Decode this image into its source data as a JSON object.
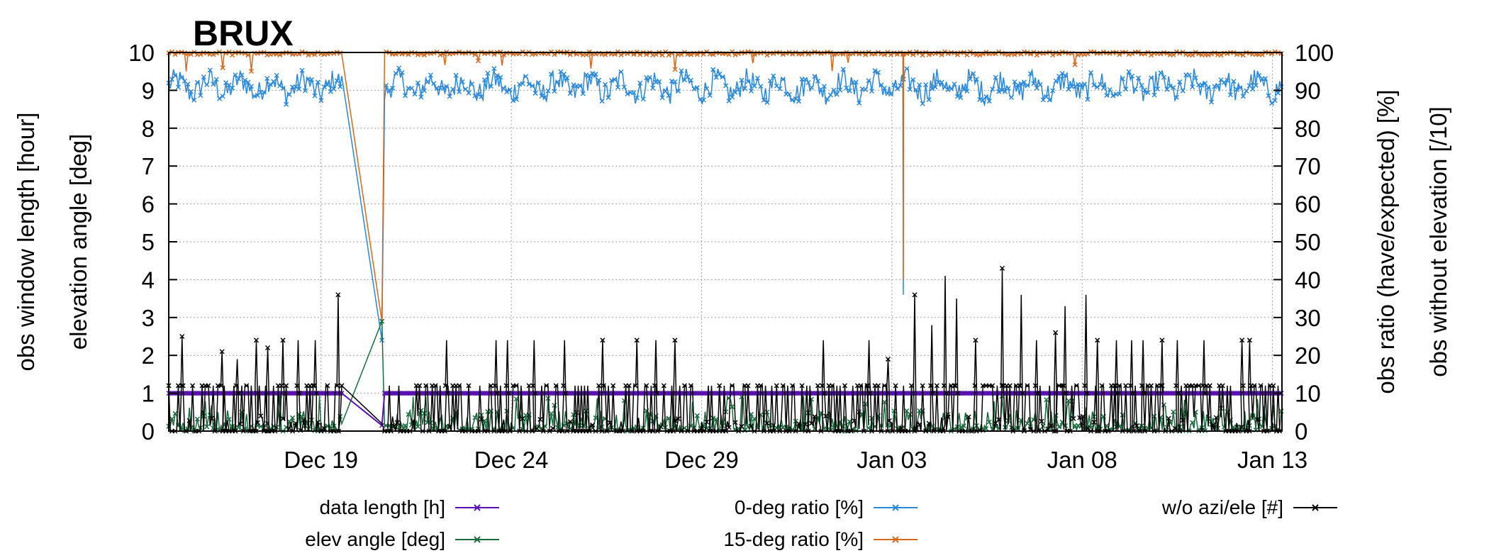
{
  "chart_data": {
    "type": "line",
    "title": "BRUX",
    "y1label_outer": "obs window length [hour]",
    "y1label_inner": "elevation angle [deg]",
    "y2label_inner": "obs ratio (have/expected) [%]",
    "y2label_outer": "obs without elevation [/10]",
    "x_range_days": [
      0,
      29.25
    ],
    "y1lim": [
      0,
      10
    ],
    "y2lim": [
      0,
      100
    ],
    "y1_ticks": [
      "0",
      "1",
      "2",
      "3",
      "4",
      "5",
      "6",
      "7",
      "8",
      "9",
      "10"
    ],
    "y2_ticks": [
      "0",
      "10",
      "20",
      "30",
      "40",
      "50",
      "60",
      "70",
      "80",
      "90",
      "100"
    ],
    "x_ticks": [
      {
        "label": "Dec 19",
        "day": 4
      },
      {
        "label": "Dec 24",
        "day": 9
      },
      {
        "label": "Dec 29",
        "day": 14
      },
      {
        "label": "Jan 03",
        "day": 19
      },
      {
        "label": "Jan 08",
        "day": 24
      },
      {
        "label": "Jan 13",
        "day": 29
      }
    ],
    "grid": true,
    "legend_position": "bottom",
    "gaps": [
      {
        "from_day": 4.55,
        "to_day": 5.65,
        "at_day": 5.6,
        "data_length": 0.15,
        "elev": 2.9,
        "ratio0": 24,
        "ratio15": 29,
        "woazi": 0.2
      }
    ],
    "dips": [
      {
        "day": 19.3,
        "ratio0": 36,
        "ratio15": 40
      }
    ],
    "series": [
      {
        "name": "data length  [h]",
        "key": "data_length",
        "axis": "y1",
        "color": "#5a0fb0",
        "pattern": {
          "base": 1.0,
          "amp": 0.0
        }
      },
      {
        "name": "elev angle [deg]",
        "key": "elev",
        "axis": "y1",
        "color": "#1a6b3c",
        "pattern": {
          "base": 0.15,
          "amp": 0.5
        }
      },
      {
        "name": "0-deg ratio [%]",
        "key": "ratio0",
        "axis": "y2",
        "color": "#2b88d8",
        "pattern": {
          "base": 91,
          "amp": 4
        }
      },
      {
        "name": "15-deg ratio [%]",
        "key": "ratio15",
        "axis": "y2",
        "color": "#d2691e",
        "pattern": {
          "base": 99.5,
          "amp": 0.8
        }
      },
      {
        "name": "w/o azi/ele [#]",
        "key": "woazi",
        "axis": "y1",
        "color": "#000000",
        "pattern": {
          "base": 0.5,
          "amp": 2.4
        }
      }
    ],
    "woazi_peaks": [
      {
        "day": 0.35,
        "v": 2.5
      },
      {
        "day": 1.4,
        "v": 2.1
      },
      {
        "day": 1.8,
        "v": 1.9
      },
      {
        "day": 2.3,
        "v": 2.4
      },
      {
        "day": 2.6,
        "v": 2.2
      },
      {
        "day": 3.0,
        "v": 2.4
      },
      {
        "day": 3.4,
        "v": 2.4
      },
      {
        "day": 3.85,
        "v": 2.4
      },
      {
        "day": 4.45,
        "v": 3.6
      },
      {
        "day": 7.3,
        "v": 2.4
      },
      {
        "day": 8.6,
        "v": 2.4
      },
      {
        "day": 8.9,
        "v": 2.4
      },
      {
        "day": 9.6,
        "v": 2.4
      },
      {
        "day": 10.4,
        "v": 2.4
      },
      {
        "day": 11.4,
        "v": 2.4
      },
      {
        "day": 12.3,
        "v": 2.4
      },
      {
        "day": 12.8,
        "v": 2.4
      },
      {
        "day": 13.3,
        "v": 2.4
      },
      {
        "day": 17.2,
        "v": 2.4
      },
      {
        "day": 18.4,
        "v": 2.4
      },
      {
        "day": 18.9,
        "v": 1.9
      },
      {
        "day": 19.6,
        "v": 3.6
      },
      {
        "day": 20.05,
        "v": 2.8
      },
      {
        "day": 20.4,
        "v": 4.1
      },
      {
        "day": 20.7,
        "v": 3.5
      },
      {
        "day": 21.2,
        "v": 2.4
      },
      {
        "day": 21.9,
        "v": 4.3
      },
      {
        "day": 22.4,
        "v": 3.6
      },
      {
        "day": 22.8,
        "v": 2.4
      },
      {
        "day": 23.3,
        "v": 2.6
      },
      {
        "day": 23.55,
        "v": 3.3
      },
      {
        "day": 24.1,
        "v": 3.6
      },
      {
        "day": 24.4,
        "v": 2.4
      },
      {
        "day": 24.9,
        "v": 2.4
      },
      {
        "day": 25.3,
        "v": 2.4
      },
      {
        "day": 25.6,
        "v": 2.4
      },
      {
        "day": 26.1,
        "v": 2.4
      },
      {
        "day": 26.5,
        "v": 2.4
      },
      {
        "day": 27.2,
        "v": 2.4
      },
      {
        "day": 28.2,
        "v": 2.4
      },
      {
        "day": 28.4,
        "v": 2.4
      }
    ]
  }
}
